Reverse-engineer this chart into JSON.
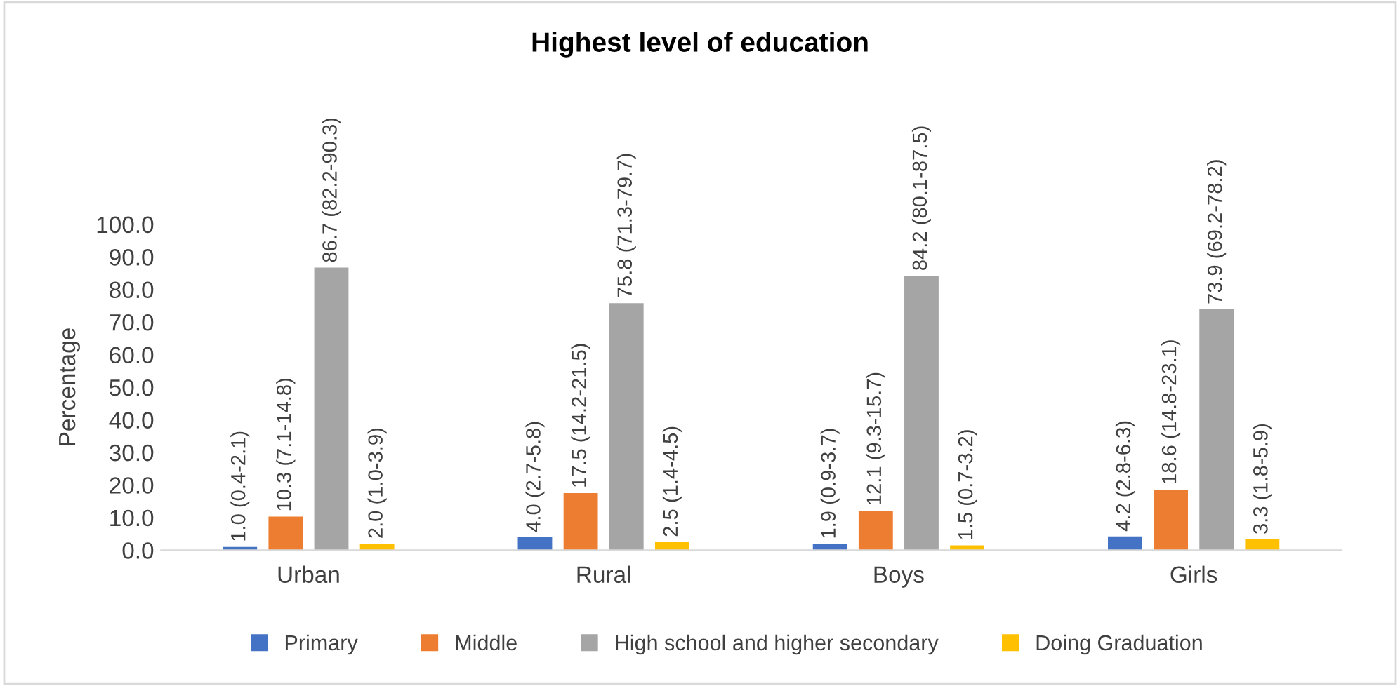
{
  "chart_data": {
    "type": "bar",
    "title": "Highest level of education",
    "ylabel": "Percentage",
    "categories": [
      "Urban",
      "Rural",
      "Boys",
      "Girls"
    ],
    "series": [
      {
        "name": "Primary",
        "color": "#4472c4",
        "values": [
          1.0,
          4.0,
          1.9,
          4.2
        ],
        "value_labels": [
          "1.0 (0.4-2.1)",
          "4.0 (2.7-5.8)",
          "1.9 (0.9-3.7)",
          "4.2 (2.8-6.3)"
        ]
      },
      {
        "name": "Middle",
        "color": "#ed7d31",
        "values": [
          10.3,
          17.5,
          12.1,
          18.6
        ],
        "value_labels": [
          "10.3 (7.1-14.8)",
          "17.5 (14.2-21.5)",
          "12.1 (9.3-15.7)",
          "18.6 (14.8-23.1)"
        ]
      },
      {
        "name": "High school and higher secondary",
        "color": "#a5a5a5",
        "values": [
          86.7,
          75.8,
          84.2,
          73.9
        ],
        "value_labels": [
          "86.7 (82.2-90.3)",
          "75.8 (71.3-79.7)",
          "84.2 (80.1-87.5)",
          "73.9 (69.2-78.2)"
        ]
      },
      {
        "name": "Doing Graduation",
        "color": "#ffc000",
        "values": [
          2.0,
          2.5,
          1.5,
          3.3
        ],
        "value_labels": [
          "2.0 (1.0-3.9)",
          "2.5 (1.4-4.5)",
          "1.5 (0.7-3.2)",
          "3.3 (1.8-5.9)"
        ]
      }
    ],
    "ylim": [
      0,
      100
    ],
    "yticks": [
      {
        "value": 0,
        "label": "0.0"
      },
      {
        "value": 10,
        "label": "10.0"
      },
      {
        "value": 20,
        "label": "20.0"
      },
      {
        "value": 30,
        "label": "30.0"
      },
      {
        "value": 40,
        "label": "40.0"
      },
      {
        "value": 50,
        "label": "50.0"
      },
      {
        "value": 60,
        "label": "60.0"
      },
      {
        "value": 70,
        "label": "70.0"
      },
      {
        "value": 80,
        "label": "80.0"
      },
      {
        "value": 90,
        "label": "90.0"
      },
      {
        "value": 100,
        "label": "100.0"
      }
    ],
    "grid": false,
    "legend": "bottom"
  }
}
